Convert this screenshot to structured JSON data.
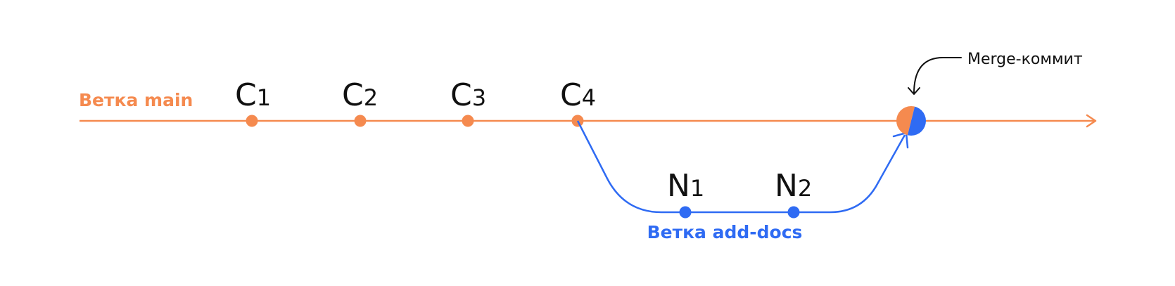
{
  "main_branch": {
    "label": "Ветка main",
    "color": "#F58A4F",
    "commits": [
      {
        "letter": "C",
        "index": "1"
      },
      {
        "letter": "C",
        "index": "2"
      },
      {
        "letter": "C",
        "index": "3"
      },
      {
        "letter": "C",
        "index": "4"
      }
    ]
  },
  "feature_branch": {
    "label": "Ветка add-docs",
    "color": "#2F6BF3",
    "commits": [
      {
        "letter": "N",
        "index": "1"
      },
      {
        "letter": "N",
        "index": "2"
      }
    ]
  },
  "merge": {
    "label": "Merge-коммит",
    "text_color": "#111111"
  }
}
